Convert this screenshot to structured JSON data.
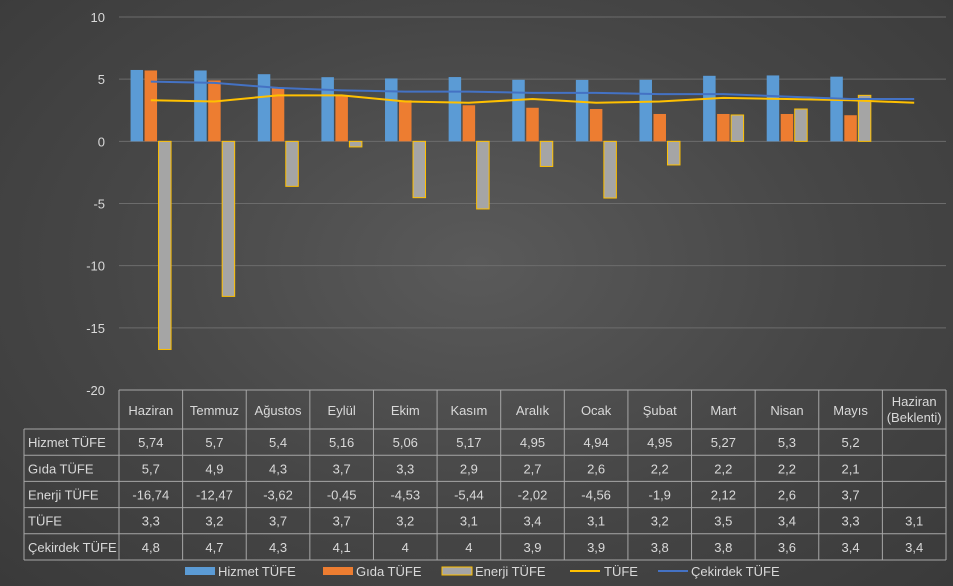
{
  "chart_data": {
    "type": "bar",
    "ylim": [
      -20,
      10
    ],
    "yticks": [
      10,
      5,
      0,
      -5,
      -10,
      -15,
      -20
    ],
    "grid": true,
    "legend_position": "bottom",
    "categories": [
      "Haziran",
      "Temmuz",
      "Ağustos",
      "Eylül",
      "Ekim",
      "Kasım",
      "Aralık",
      "Ocak",
      "Şubat",
      "Mart",
      "Nisan",
      "Mayıs",
      "Haziran (Beklenti)"
    ],
    "category_lines": [
      [
        "Haziran"
      ],
      [
        "Temmuz"
      ],
      [
        "Ağustos"
      ],
      [
        "Eylül"
      ],
      [
        "Ekim"
      ],
      [
        "Kasım"
      ],
      [
        "Aralık"
      ],
      [
        "Ocak"
      ],
      [
        "Şubat"
      ],
      [
        "Mart"
      ],
      [
        "Nisan"
      ],
      [
        "Mayıs"
      ],
      [
        "Haziran",
        "(Beklenti)"
      ]
    ],
    "series": [
      {
        "name": "Hizmet TÜFE",
        "kind": "bar",
        "color": "#5b9bd5",
        "values": [
          5.74,
          5.7,
          5.4,
          5.16,
          5.06,
          5.17,
          4.95,
          4.94,
          4.95,
          5.27,
          5.3,
          5.2,
          null
        ],
        "labels": [
          "5,74",
          "5,7",
          "5,4",
          "5,16",
          "5,06",
          "5,17",
          "4,95",
          "4,94",
          "4,95",
          "5,27",
          "5,3",
          "5,2",
          ""
        ]
      },
      {
        "name": "Gıda TÜFE",
        "kind": "bar",
        "color": "#ed7d31",
        "values": [
          5.7,
          4.9,
          4.3,
          3.7,
          3.3,
          2.9,
          2.7,
          2.6,
          2.2,
          2.2,
          2.2,
          2.1,
          null
        ],
        "labels": [
          "5,7",
          "4,9",
          "4,3",
          "3,7",
          "3,3",
          "2,9",
          "2,7",
          "2,6",
          "2,2",
          "2,2",
          "2,2",
          "2,1",
          ""
        ]
      },
      {
        "name": "Enerji TÜFE",
        "kind": "bar",
        "color": "#a5a5a5",
        "border": "#ffc000",
        "values": [
          -16.74,
          -12.47,
          -3.62,
          -0.45,
          -4.53,
          -5.44,
          -2.02,
          -4.56,
          -1.9,
          2.12,
          2.6,
          3.7,
          null
        ],
        "labels": [
          "-16,74",
          "-12,47",
          "-3,62",
          "-0,45",
          "-4,53",
          "-5,44",
          "-2,02",
          "-4,56",
          "-1,9",
          "2,12",
          "2,6",
          "3,7",
          ""
        ]
      },
      {
        "name": "TÜFE",
        "kind": "line",
        "color": "#ffc000",
        "values": [
          3.3,
          3.2,
          3.7,
          3.7,
          3.2,
          3.1,
          3.4,
          3.1,
          3.2,
          3.5,
          3.4,
          3.3,
          3.1
        ],
        "labels": [
          "3,3",
          "3,2",
          "3,7",
          "3,7",
          "3,2",
          "3,1",
          "3,4",
          "3,1",
          "3,2",
          "3,5",
          "3,4",
          "3,3",
          "3,1"
        ]
      },
      {
        "name": "Çekirdek TÜFE",
        "kind": "line",
        "color": "#4472c4",
        "values": [
          4.8,
          4.7,
          4.3,
          4.1,
          4,
          4,
          3.9,
          3.9,
          3.8,
          3.8,
          3.6,
          3.4,
          3.4
        ],
        "labels": [
          "4,8",
          "4,7",
          "4,3",
          "4,1",
          "4",
          "4",
          "3,9",
          "3,9",
          "3,8",
          "3,8",
          "3,6",
          "3,4",
          "3,4"
        ]
      }
    ]
  }
}
